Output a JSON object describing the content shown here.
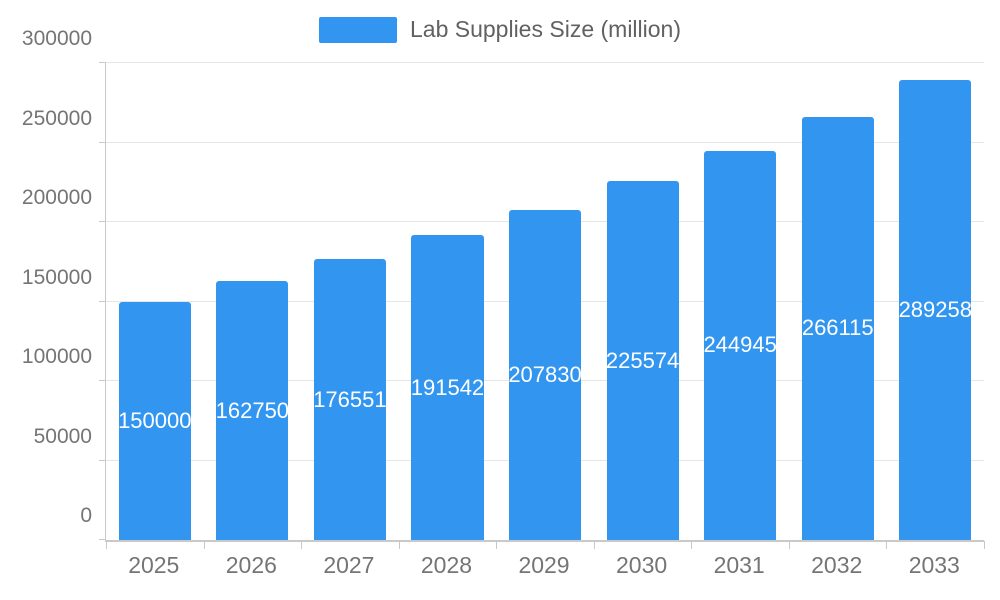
{
  "legend": {
    "label": "Lab Supplies Size (million)"
  },
  "chart_data": {
    "type": "bar",
    "title": "Lab Supplies Size (million)",
    "xlabel": "",
    "ylabel": "",
    "categories": [
      "2025",
      "2026",
      "2027",
      "2028",
      "2029",
      "2030",
      "2031",
      "2032",
      "2033"
    ],
    "values": [
      150000,
      162750,
      176551,
      191542,
      207830,
      225574,
      244945,
      266115,
      289258
    ],
    "ylim": [
      0,
      300000
    ],
    "yticks": [
      0,
      50000,
      100000,
      150000,
      200000,
      250000,
      300000
    ],
    "grid": true,
    "legend_position": "top-center",
    "colors": {
      "bar": "#3296F0",
      "value_label": "#FFFFFF",
      "axis_line": "#C9C9C9",
      "gridline": "#E6E6E6",
      "tick_label": "#757575",
      "legend_text": "#616161",
      "background": "#FFFFFF"
    }
  }
}
